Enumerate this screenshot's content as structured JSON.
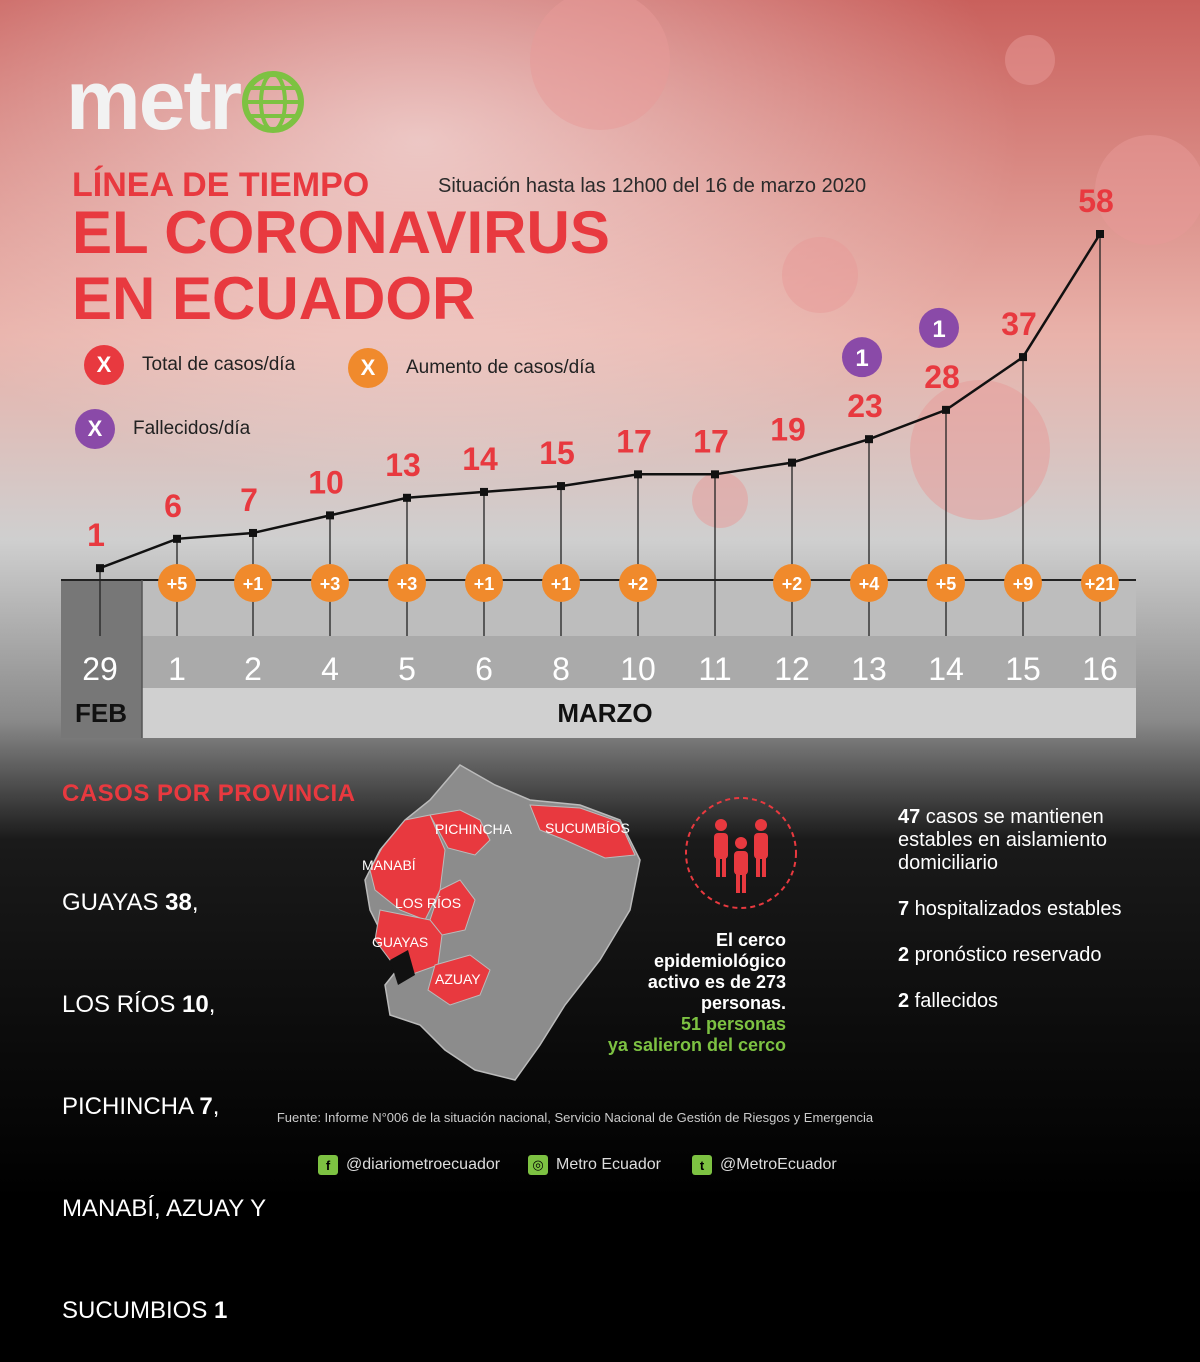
{
  "brand": {
    "logo_text": "metr",
    "logo_globe": "globe-icon",
    "accent": "#7dc242"
  },
  "header": {
    "kicker": "LÍNEA DE TIEMPO",
    "subtitle": "Situación hasta las 12h00 del 16 de marzo 2020",
    "title_line1": "EL CORONAVIRUS",
    "title_line2": "EN ECUADOR"
  },
  "legend": [
    {
      "symbol": "X",
      "label": "Total de casos/día",
      "color": "#e8393f"
    },
    {
      "symbol": "X",
      "label": "Aumento de casos/día",
      "color": "#f08a2c"
    },
    {
      "symbol": "X",
      "label": "Fallecidos/día",
      "color": "#8a4aa8"
    }
  ],
  "chart_data": {
    "type": "line",
    "x": [
      "29",
      "1",
      "2",
      "4",
      "5",
      "6",
      "8",
      "10",
      "11",
      "12",
      "13",
      "14",
      "15",
      "16"
    ],
    "months": [
      {
        "label": "FEB",
        "days": 1
      },
      {
        "label": "MARZO",
        "days": 13
      }
    ],
    "series": [
      {
        "name": "Total de casos/día",
        "values": [
          1,
          6,
          7,
          10,
          13,
          14,
          15,
          17,
          17,
          19,
          23,
          28,
          37,
          58
        ]
      },
      {
        "name": "Aumento de casos/día",
        "values": [
          null,
          "+5",
          "+1",
          "+3",
          "+3",
          "+1",
          "+1",
          "+2",
          null,
          "+2",
          "+4",
          "+5",
          "+9",
          "+21"
        ]
      },
      {
        "name": "Fallecidos/día",
        "values": [
          null,
          null,
          null,
          null,
          null,
          null,
          null,
          null,
          null,
          null,
          1,
          1,
          null,
          null
        ]
      }
    ],
    "ylim": [
      0,
      58
    ],
    "colors": {
      "line": "#111111",
      "total": "#e8393f",
      "increase": "#f08a2c",
      "deaths": "#8a4aa8"
    }
  },
  "provinces": {
    "title": "CASOS POR PROVINCIA",
    "list": [
      {
        "name": "GUAYAS ",
        "count": "38",
        "suffix": ","
      },
      {
        "name": "LOS RÍOS ",
        "count": "10",
        "suffix": ","
      },
      {
        "name": "PICHINCHA ",
        "count": "7",
        "suffix": ","
      },
      {
        "name": "MANABÍ, AZUAY Y",
        "count": "",
        "suffix": ""
      },
      {
        "name": "SUCUMBIOS ",
        "count": "1",
        "suffix": ""
      }
    ],
    "map_labels": [
      "PICHINCHA",
      "SUCUMBÍOS",
      "MANABÍ",
      "LOS RÍOS",
      "GUAYAS",
      "AZUAY"
    ],
    "highlight_color": "#e8393f"
  },
  "cerco": {
    "icon": "people-group-icon",
    "line1": "El cerco",
    "line2": "epidemiológico",
    "line3": "activo es de 273",
    "line4": "personas.",
    "green1": "51 personas",
    "green2": "ya salieron del cerco"
  },
  "stats": [
    {
      "bold": "47",
      "text": " casos se mantienen estables en aislamiento domiciliario"
    },
    {
      "bold": "7",
      "text": " hospitalizados estables"
    },
    {
      "bold": "2",
      "text": " pronóstico reservado"
    },
    {
      "bold": "2",
      "text": " fallecidos"
    }
  ],
  "footer": {
    "source": "Fuente: Informe N°006 de la situación nacional, Servicio Nacional de Gestión de Riesgos y Emergencia",
    "facebook": "@diariometroecuador",
    "instagram": "Metro Ecuador",
    "twitter": "@MetroEcuador"
  }
}
